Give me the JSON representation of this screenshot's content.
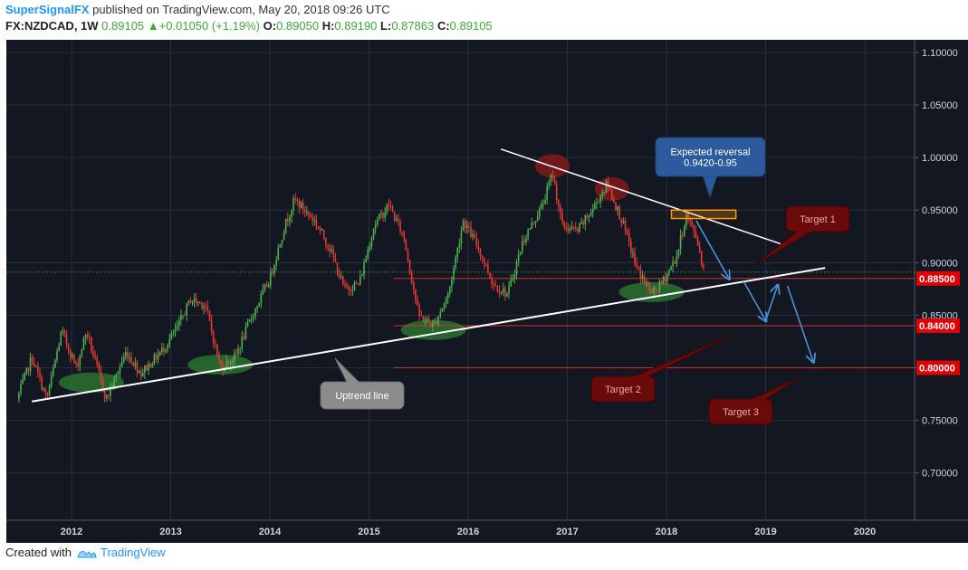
{
  "header": {
    "publisher": "SuperSignalFX",
    "published_text": "published on TradingView.com, May 20, 2018 09:26 UTC",
    "symbol": "FX:NZDCAD, 1W",
    "last": "0.89105",
    "change": "+0.01050 (+1.19%)",
    "open_label": "O:",
    "open": "0.89050",
    "high_label": "H:",
    "high": "0.89190",
    "low_label": "L:",
    "low": "0.87863",
    "close_label": "C:",
    "close": "0.89105"
  },
  "footer": {
    "created_with": "Created with",
    "brand": "TradingView"
  },
  "colors": {
    "background": "#131722",
    "grid": "#2a2e39",
    "up": "#4caf50",
    "down": "#e53935",
    "axis_text": "#d1d4dc",
    "trendline": "#ffffff",
    "target_line": "#d32f2f",
    "price_label_bg": "#e00000",
    "arrow": "#4a90d9",
    "callout_fill": "#6b0a0a",
    "reversal_fill": "#2c5a9c",
    "uptrend_fill": "#8c8c8c",
    "box_stroke": "#ff9800"
  },
  "chart_data": {
    "type": "candlestick",
    "symbol": "NZDCAD",
    "timeframe": "1W",
    "x_tick_labels": [
      "2012",
      "2013",
      "2014",
      "2015",
      "2016",
      "2017",
      "2018",
      "2019",
      "2020"
    ],
    "y_tick_labels": [
      "1.10000",
      "1.05000",
      "1.00000",
      "0.95000",
      "0.90000",
      "0.85000",
      "0.80000",
      "0.75000",
      "0.70000"
    ],
    "ylim": [
      0.655,
      1.112
    ],
    "grid": true,
    "current_price": 0.89105,
    "price_path": [
      [
        2011.45,
        0.77
      ],
      [
        2011.6,
        0.81
      ],
      [
        2011.75,
        0.77
      ],
      [
        2011.9,
        0.835
      ],
      [
        2012.05,
        0.8
      ],
      [
        2012.15,
        0.835
      ],
      [
        2012.35,
        0.77
      ],
      [
        2012.55,
        0.815
      ],
      [
        2012.7,
        0.795
      ],
      [
        2012.9,
        0.815
      ],
      [
        2013.05,
        0.835
      ],
      [
        2013.2,
        0.865
      ],
      [
        2013.35,
        0.86
      ],
      [
        2013.5,
        0.8
      ],
      [
        2013.65,
        0.81
      ],
      [
        2013.8,
        0.845
      ],
      [
        2014.0,
        0.885
      ],
      [
        2014.15,
        0.935
      ],
      [
        2014.25,
        0.96
      ],
      [
        2014.45,
        0.94
      ],
      [
        2014.6,
        0.915
      ],
      [
        2014.75,
        0.875
      ],
      [
        2014.9,
        0.88
      ],
      [
        2015.05,
        0.935
      ],
      [
        2015.2,
        0.955
      ],
      [
        2015.35,
        0.925
      ],
      [
        2015.5,
        0.85
      ],
      [
        2015.65,
        0.84
      ],
      [
        2015.8,
        0.87
      ],
      [
        2015.95,
        0.94
      ],
      [
        2016.1,
        0.915
      ],
      [
        2016.25,
        0.88
      ],
      [
        2016.4,
        0.87
      ],
      [
        2016.55,
        0.92
      ],
      [
        2016.75,
        0.955
      ],
      [
        2016.85,
        0.985
      ],
      [
        2016.95,
        0.935
      ],
      [
        2017.1,
        0.93
      ],
      [
        2017.25,
        0.95
      ],
      [
        2017.4,
        0.975
      ],
      [
        2017.55,
        0.94
      ],
      [
        2017.7,
        0.895
      ],
      [
        2017.85,
        0.87
      ],
      [
        2017.95,
        0.88
      ],
      [
        2018.1,
        0.905
      ],
      [
        2018.2,
        0.945
      ],
      [
        2018.3,
        0.925
      ],
      [
        2018.38,
        0.891
      ]
    ],
    "horizontal_lines": [
      {
        "value": 0.885,
        "label": "0.88500"
      },
      {
        "value": 0.84,
        "label": "0.84000"
      },
      {
        "value": 0.8,
        "label": "0.80000"
      }
    ],
    "last_price_line": 0.891,
    "uptrend_line": {
      "from": [
        2011.6,
        0.768
      ],
      "to": [
        2019.6,
        0.895
      ]
    },
    "resistance_line": {
      "from": [
        2016.33,
        1.008
      ],
      "to": [
        2019.15,
        0.918
      ]
    },
    "reversal_box": {
      "x": [
        2018.05,
        2018.7
      ],
      "y": [
        0.942,
        0.95
      ]
    },
    "annotations": {
      "expected_reversal": "Expected reversal\n0.9420-0.95",
      "uptrend": "Uptrend line",
      "target1": "Target 1",
      "target2": "Target 2",
      "target3": "Target 3"
    },
    "highlight_lows": [
      [
        2012.2,
        0.786
      ],
      [
        2013.5,
        0.803
      ],
      [
        2015.65,
        0.836
      ],
      [
        2017.85,
        0.872
      ]
    ],
    "highlight_highs": [
      [
        2016.85,
        0.992
      ],
      [
        2017.45,
        0.97
      ]
    ],
    "projection_arrows": [
      [
        [
          2018.3,
          0.94
        ],
        [
          2018.63,
          0.885
        ]
      ],
      [
        [
          2018.78,
          0.882
        ],
        [
          2019.0,
          0.845
        ]
      ],
      [
        [
          2019.0,
          0.845
        ],
        [
          2019.12,
          0.878
        ]
      ],
      [
        [
          2019.22,
          0.878
        ],
        [
          2019.48,
          0.806
        ]
      ]
    ]
  }
}
